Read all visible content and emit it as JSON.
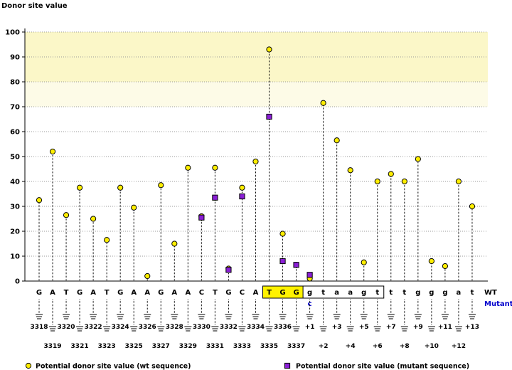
{
  "chart_data": {
    "type": "scatter",
    "ylabel": "Donor site value",
    "ylim": [
      0,
      100
    ],
    "yticks": [
      0,
      10,
      20,
      30,
      40,
      50,
      60,
      70,
      80,
      90,
      100
    ],
    "bands": [
      {
        "from": 80,
        "to": 100,
        "color": "#fbf7c8"
      },
      {
        "from": 70,
        "to": 80,
        "color": "#fdfbe7"
      }
    ],
    "row_labels": {
      "wt": "WT",
      "mutant": "Mutant"
    },
    "highlight": {
      "start_index": 17,
      "end_index": 25,
      "fill": "#fff200",
      "inner_fill": "#ffffff"
    },
    "sequence": [
      {
        "base": "G",
        "pos": "3318",
        "wt": 32.5
      },
      {
        "base": "A",
        "pos": "3319",
        "wt": 52
      },
      {
        "base": "T",
        "pos": "3320",
        "wt": 26.5
      },
      {
        "base": "G",
        "pos": "3321",
        "wt": 37.5
      },
      {
        "base": "A",
        "pos": "3322",
        "wt": 25
      },
      {
        "base": "T",
        "pos": "3323",
        "wt": 16.5
      },
      {
        "base": "G",
        "pos": "3324",
        "wt": 37.5
      },
      {
        "base": "A",
        "pos": "3325",
        "wt": 29.5
      },
      {
        "base": "A",
        "pos": "3326",
        "wt": 2
      },
      {
        "base": "G",
        "pos": "3327",
        "wt": 38.5
      },
      {
        "base": "A",
        "pos": "3328",
        "wt": 15
      },
      {
        "base": "A",
        "pos": "3329",
        "wt": 45.5
      },
      {
        "base": "C",
        "pos": "3330",
        "wt": 26,
        "mut": 25.5
      },
      {
        "base": "T",
        "pos": "3331",
        "wt": 45.5,
        "mut": 33.5
      },
      {
        "base": "G",
        "pos": "3332",
        "wt": 5,
        "mut": 4.5
      },
      {
        "base": "C",
        "pos": "3333",
        "wt": 37.5,
        "mut": 34
      },
      {
        "base": "A",
        "pos": "3334",
        "wt": 48
      },
      {
        "base": "T",
        "pos": "3335",
        "wt": 93,
        "mut": 66
      },
      {
        "base": "G",
        "pos": "3336",
        "wt": 19,
        "mut": 8
      },
      {
        "base": "G",
        "pos": "3337",
        "wt": 6.5,
        "mut": 6.5
      },
      {
        "base": "g",
        "pos": "+1",
        "wt": 1,
        "mut": 2.5,
        "mutant_base": "c"
      },
      {
        "base": "t",
        "pos": "+2",
        "wt": 71.5
      },
      {
        "base": "a",
        "pos": "+3",
        "wt": 56.5
      },
      {
        "base": "a",
        "pos": "+4",
        "wt": 44.5
      },
      {
        "base": "g",
        "pos": "+5",
        "wt": 7.5
      },
      {
        "base": "t",
        "pos": "+6",
        "wt": 40
      },
      {
        "base": "t",
        "pos": "+7",
        "wt": 43
      },
      {
        "base": "t",
        "pos": "+8",
        "wt": 40
      },
      {
        "base": "g",
        "pos": "+9",
        "wt": 49
      },
      {
        "base": "g",
        "pos": "+10",
        "wt": 8
      },
      {
        "base": "g",
        "pos": "+11",
        "wt": 6
      },
      {
        "base": "a",
        "pos": "+12",
        "wt": 40
      },
      {
        "base": "t",
        "pos": "+13",
        "wt": 30
      }
    ],
    "legend": [
      {
        "label": "Potential donor site value (wt sequence)",
        "marker": "circle",
        "color": "#ffee00"
      },
      {
        "label": "Potential donor site value (mutant sequence)",
        "marker": "square",
        "color": "#8b1fd6"
      }
    ]
  }
}
